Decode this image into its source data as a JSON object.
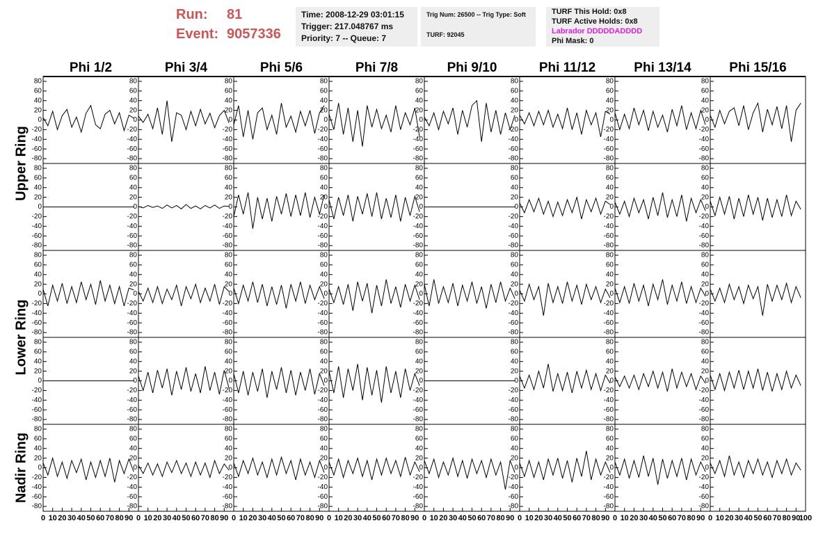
{
  "header": {
    "run_label": "Run:",
    "run": "81",
    "event_label": "Event:",
    "event": "9057336"
  },
  "info": {
    "time": "Time: 2008-12-29 03:01:15",
    "trigger": "Trigger: 217.048767 ms",
    "priority": "Priority: 7 -- Queue: 7",
    "trig_num": "Trig Num: 26500 -- Trig Type: Soft",
    "turf": "TURF: 92045",
    "turf_hold": "TURF This Hold: 0x8",
    "turf_active": "TURF Active Holds: 0x8",
    "labrador": "Labrador DDDDDADDDD",
    "phi_mask": "Phi Mask: 0"
  },
  "chart_data": {
    "type": "line",
    "columns": [
      "Phi 1/2",
      "Phi 3/4",
      "Phi 5/6",
      "Phi 7/8",
      "Phi 9/10",
      "Phi 11/12",
      "Phi 13/14",
      "Phi 15/16"
    ],
    "row_labels": [
      "Upper Ring",
      "Lower Ring",
      "Nadir Ring"
    ],
    "color": "#000000",
    "xlim": [
      0,
      100
    ],
    "xticks": [
      0,
      10,
      20,
      30,
      40,
      50,
      60,
      70,
      80,
      90,
      100
    ],
    "ylim": [
      -90,
      90
    ],
    "yticks": [
      -80,
      -60,
      -40,
      -20,
      0,
      20,
      40,
      60,
      80
    ],
    "x": [
      0,
      5,
      10,
      15,
      20,
      25,
      30,
      35,
      40,
      45,
      50,
      55,
      60,
      65,
      70,
      75,
      80,
      85,
      90,
      95
    ],
    "panels": [
      [
        [
          5,
          -12,
          18,
          -20,
          9,
          22,
          -15,
          6,
          -25,
          14,
          30,
          -10,
          -18,
          12,
          20,
          -8,
          15,
          -22,
          10,
          4
        ],
        [
          8,
          -5,
          12,
          -18,
          25,
          -30,
          40,
          -45,
          15,
          10,
          -20,
          18,
          -12,
          22,
          -8,
          14,
          -16,
          9,
          20,
          -6
        ],
        [
          -10,
          30,
          -35,
          20,
          -40,
          15,
          25,
          -20,
          10,
          -30,
          35,
          -15,
          8,
          -25,
          18,
          -12,
          20,
          -28,
          15,
          30
        ],
        [
          12,
          -20,
          35,
          -30,
          25,
          -45,
          20,
          -55,
          30,
          -15,
          22,
          -18,
          10,
          -25,
          30,
          -20,
          15,
          -10,
          25,
          -35
        ],
        [
          6,
          -12,
          15,
          -20,
          18,
          -8,
          25,
          -30,
          20,
          -15,
          30,
          40,
          -45,
          35,
          -25,
          20,
          -30,
          15,
          -20,
          10
        ],
        [
          10,
          -8,
          15,
          -12,
          18,
          -10,
          20,
          -15,
          12,
          -18,
          25,
          -20,
          15,
          -30,
          20,
          -10,
          15,
          -35,
          18,
          12
        ],
        [
          15,
          -20,
          12,
          -18,
          25,
          -10,
          20,
          -22,
          18,
          -15,
          10,
          -25,
          22,
          -12,
          30,
          -20,
          15,
          -18,
          20,
          -10
        ],
        [
          10,
          -15,
          20,
          -8,
          18,
          25,
          -12,
          30,
          -20,
          15,
          35,
          -25,
          22,
          -10,
          28,
          -18,
          30,
          -45,
          20,
          35
        ]
      ],
      [
        [
          0,
          0,
          0,
          0,
          0,
          0,
          0,
          0,
          0,
          0,
          0,
          0,
          0,
          0,
          0,
          0,
          0,
          0,
          0,
          0
        ],
        [
          1,
          -2,
          3,
          -1,
          2,
          -3,
          4,
          -2,
          3,
          -4,
          5,
          -3,
          2,
          -4,
          3,
          -2,
          4,
          -3,
          2,
          1
        ],
        [
          -20,
          25,
          -15,
          30,
          -45,
          20,
          -25,
          18,
          -30,
          22,
          -15,
          28,
          -20,
          25,
          -18,
          30,
          -22,
          20,
          -15,
          25
        ],
        [
          15,
          -25,
          20,
          -18,
          25,
          -30,
          22,
          -15,
          28,
          -20,
          30,
          -25,
          18,
          -22,
          25,
          -30,
          20,
          -18,
          22,
          -10
        ],
        [
          0,
          0,
          0,
          0,
          0,
          0,
          0,
          0,
          0,
          0,
          0,
          0,
          0,
          0,
          0,
          0,
          0,
          0,
          0,
          0
        ],
        [
          8,
          -12,
          15,
          -10,
          18,
          -15,
          12,
          -20,
          10,
          -18,
          15,
          -12,
          20,
          -25,
          15,
          -10,
          18,
          -15,
          12,
          5
        ],
        [
          10,
          -15,
          12,
          -20,
          18,
          -12,
          15,
          -25,
          20,
          -18,
          30,
          -22,
          15,
          -20,
          25,
          -30,
          18,
          -12,
          15,
          -8
        ],
        [
          12,
          -18,
          20,
          -15,
          22,
          -25,
          18,
          -20,
          25,
          -15,
          20,
          -28,
          18,
          -22,
          15,
          -20,
          25,
          -18,
          12,
          -5
        ]
      ],
      [
        [
          10,
          -25,
          18,
          -15,
          22,
          -20,
          15,
          -18,
          25,
          -12,
          20,
          -22,
          28,
          -15,
          18,
          -20,
          15,
          -25,
          12,
          8
        ],
        [
          5,
          -15,
          12,
          -18,
          15,
          -20,
          10,
          -12,
          18,
          -25,
          15,
          -10,
          20,
          -18,
          12,
          -15,
          20,
          -22,
          15,
          5
        ],
        [
          12,
          -20,
          18,
          -15,
          25,
          -18,
          20,
          -25,
          15,
          -22,
          18,
          -30,
          20,
          -15,
          25,
          -20,
          18,
          -12,
          15,
          -10
        ],
        [
          10,
          -18,
          15,
          -22,
          20,
          -35,
          25,
          -15,
          22,
          -40,
          18,
          -25,
          30,
          -20,
          15,
          -28,
          20,
          -15,
          18,
          -12
        ],
        [
          20,
          -25,
          30,
          -20,
          15,
          -18,
          22,
          -25,
          18,
          -15,
          25,
          -20,
          15,
          -30,
          20,
          -18,
          25,
          -15,
          12,
          -10
        ],
        [
          8,
          -15,
          20,
          -12,
          15,
          -45,
          22,
          -18,
          15,
          -20,
          25,
          -15,
          18,
          -22,
          20,
          -12,
          15,
          -18,
          10,
          -8
        ],
        [
          12,
          -18,
          15,
          -20,
          22,
          -15,
          18,
          -25,
          20,
          -12,
          30,
          -22,
          18,
          -15,
          25,
          -20,
          15,
          -18,
          12,
          -5
        ],
        [
          10,
          -15,
          12,
          -18,
          20,
          -12,
          15,
          -20,
          18,
          -10,
          15,
          -45,
          20,
          -15,
          18,
          -12,
          22,
          -18,
          15,
          -8
        ]
      ],
      [
        [
          0,
          0,
          0,
          0,
          0,
          0,
          0,
          0,
          0,
          0,
          0,
          0,
          0,
          0,
          0,
          0,
          0,
          0,
          0,
          0
        ],
        [
          10,
          -20,
          18,
          -25,
          22,
          -15,
          25,
          -30,
          20,
          -18,
          28,
          -22,
          15,
          -25,
          30,
          -20,
          18,
          -28,
          22,
          -15
        ],
        [
          15,
          -25,
          20,
          -30,
          18,
          -22,
          25,
          -35,
          20,
          -18,
          28,
          -25,
          22,
          -30,
          18,
          -20,
          25,
          -28,
          15,
          -10
        ],
        [
          20,
          -25,
          30,
          -35,
          25,
          -20,
          35,
          -40,
          28,
          -30,
          22,
          -45,
          30,
          -25,
          20,
          -35,
          25,
          -20,
          15,
          -10
        ],
        [
          0,
          0,
          0,
          0,
          0,
          0,
          0,
          0,
          0,
          0,
          0,
          0,
          0,
          0,
          0,
          0,
          0,
          0,
          0,
          0
        ],
        [
          10,
          -15,
          12,
          -18,
          20,
          -15,
          35,
          -22,
          15,
          -20,
          18,
          -25,
          20,
          -15,
          22,
          -18,
          15,
          -20,
          12,
          -5
        ],
        [
          8,
          -12,
          10,
          -15,
          12,
          -18,
          15,
          -12,
          20,
          -15,
          18,
          -22,
          25,
          -15,
          18,
          -12,
          15,
          -18,
          10,
          -5
        ],
        [
          12,
          -18,
          15,
          -20,
          18,
          -15,
          22,
          -18,
          20,
          -15,
          25,
          -20,
          18,
          -22,
          15,
          -18,
          20,
          -15,
          12,
          -10
        ]
      ],
      [
        [
          10,
          -15,
          20,
          -18,
          12,
          -22,
          15,
          -10,
          18,
          -25,
          12,
          -20,
          15,
          -18,
          20,
          -30,
          15,
          -12,
          18,
          -8
        ],
        [
          5,
          -12,
          10,
          -15,
          8,
          -18,
          12,
          -10,
          15,
          -12,
          10,
          -18,
          12,
          -15,
          10,
          -20,
          15,
          -12,
          8,
          -5
        ],
        [
          10,
          -18,
          15,
          -12,
          20,
          -15,
          12,
          -20,
          18,
          -15,
          22,
          -12,
          15,
          -25,
          18,
          -15,
          12,
          -20,
          15,
          -10
        ],
        [
          12,
          -15,
          18,
          -20,
          15,
          -12,
          20,
          -18,
          15,
          -25,
          18,
          -15,
          20,
          -12,
          15,
          -18,
          22,
          -15,
          12,
          -8
        ],
        [
          15,
          -12,
          18,
          -20,
          12,
          -15,
          20,
          -18,
          15,
          -22,
          18,
          -12,
          15,
          -20,
          18,
          -15,
          12,
          -45,
          15,
          -10
        ],
        [
          10,
          -18,
          15,
          -20,
          12,
          -25,
          18,
          -15,
          20,
          -22,
          15,
          -30,
          20,
          -18,
          35,
          -25,
          18,
          -15,
          12,
          -10
        ],
        [
          12,
          -15,
          18,
          -22,
          15,
          -20,
          25,
          -18,
          20,
          -35,
          18,
          -22,
          15,
          -18,
          20,
          -25,
          18,
          -15,
          12,
          -8
        ],
        [
          10,
          -12,
          15,
          -18,
          25,
          -15,
          12,
          -20,
          15,
          -12,
          18,
          -15,
          12,
          -20,
          15,
          -12,
          18,
          -15,
          10,
          -5
        ]
      ]
    ]
  }
}
